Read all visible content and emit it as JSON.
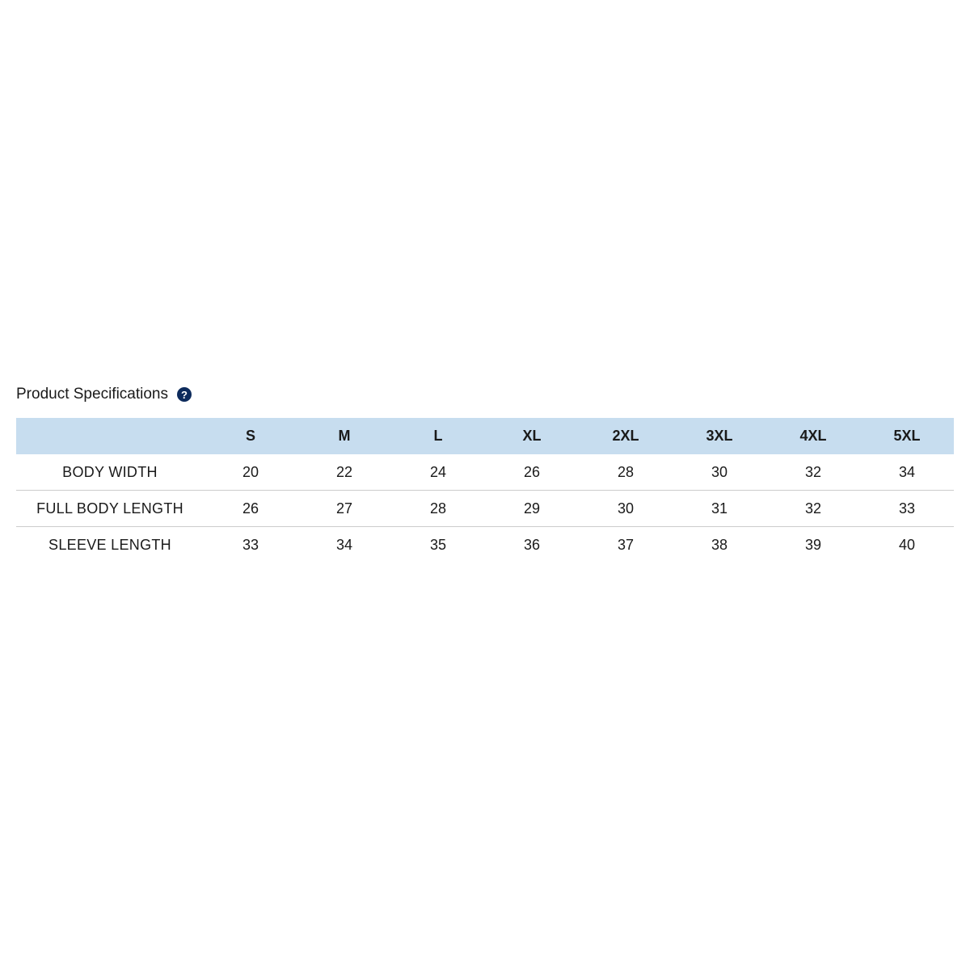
{
  "specs": {
    "title": "Product Specifications",
    "help_icon": "question-circle-icon",
    "header_color": "#c7ddef",
    "sizes": [
      "S",
      "M",
      "L",
      "XL",
      "2XL",
      "3XL",
      "4XL",
      "5XL"
    ],
    "rows": [
      {
        "label": "BODY WIDTH",
        "values": [
          "20",
          "22",
          "24",
          "26",
          "28",
          "30",
          "32",
          "34"
        ]
      },
      {
        "label": "FULL BODY LENGTH",
        "values": [
          "26",
          "27",
          "28",
          "29",
          "30",
          "31",
          "32",
          "33"
        ]
      },
      {
        "label": "SLEEVE LENGTH",
        "values": [
          "33",
          "34",
          "35",
          "36",
          "37",
          "38",
          "39",
          "40"
        ]
      }
    ]
  }
}
